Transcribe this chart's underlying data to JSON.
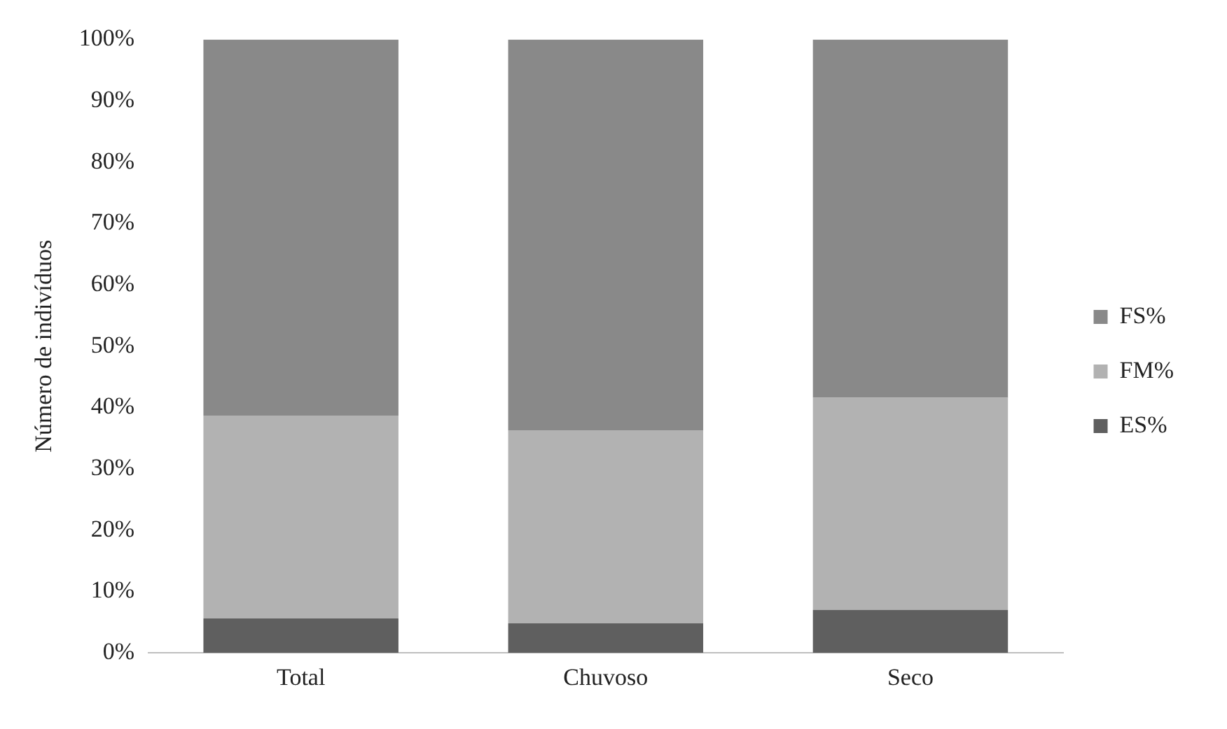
{
  "chart_data": {
    "type": "bar",
    "stacked": true,
    "ylabel": "Número de indivíduos",
    "categories": [
      "Total",
      "Chuvoso",
      "Seco"
    ],
    "series": [
      {
        "name": "ES%",
        "color": "#5f5f5f",
        "values": [
          5.6,
          4.8,
          7.0
        ]
      },
      {
        "name": "FM%",
        "color": "#b2b2b2",
        "values": [
          33.1,
          31.5,
          34.6
        ]
      },
      {
        "name": "FS%",
        "color": "#898989",
        "values": [
          61.3,
          63.7,
          58.4
        ]
      }
    ],
    "ylim": [
      0,
      100
    ],
    "yticks": [
      {
        "value": 0,
        "label": "0%"
      },
      {
        "value": 10,
        "label": "10%"
      },
      {
        "value": 20,
        "label": "20%"
      },
      {
        "value": 30,
        "label": "30%"
      },
      {
        "value": 40,
        "label": "40%"
      },
      {
        "value": 50,
        "label": "50%"
      },
      {
        "value": 60,
        "label": "60%"
      },
      {
        "value": 70,
        "label": "70%"
      },
      {
        "value": 80,
        "label": "80%"
      },
      {
        "value": 90,
        "label": "90%"
      },
      {
        "value": 100,
        "label": "100%"
      }
    ],
    "grid": false,
    "legend": "right"
  }
}
